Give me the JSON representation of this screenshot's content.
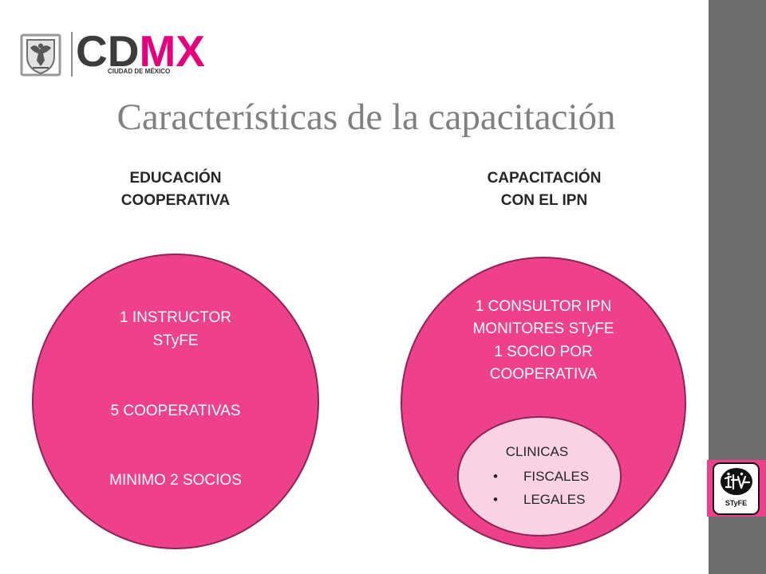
{
  "logo": {
    "wordmark": "CDMX",
    "subtitle": "CIUDAD DE MÉXICO",
    "seal_icon": "mexico-city-seal-icon"
  },
  "title": "Características de la capacitación",
  "columns": [
    {
      "heading": [
        "EDUCACIÓN",
        "COOPERATIVA"
      ],
      "circle": {
        "instructor": [
          "1 INSTRUCTOR",
          "STyFE"
        ],
        "cooperatives": "5 COOPERATIVAS",
        "members": "MINIMO 2 SOCIOS"
      }
    },
    {
      "heading": [
        "CAPACITACIÓN",
        "CON EL IPN"
      ],
      "circle": {
        "lines": [
          "1 CONSULTOR IPN",
          "MONITORES STyFE",
          "1 SOCIO POR",
          "COOPERATIVA"
        ],
        "inner": {
          "title": "CLINICAS",
          "bullets": [
            "FISCALES",
            "LEGALES"
          ]
        }
      }
    }
  ],
  "badge": {
    "text": "STyFE",
    "icon": "styfe-logo-icon"
  },
  "colors": {
    "circle_fill": "#ef408c",
    "circle_border": "#8e2456",
    "inner_fill": "#f9d2e3",
    "sidebar": "#6d6d6d",
    "brand_dark": "#3c3c3c",
    "brand_magenta": "#e5007e",
    "title": "#808080"
  }
}
